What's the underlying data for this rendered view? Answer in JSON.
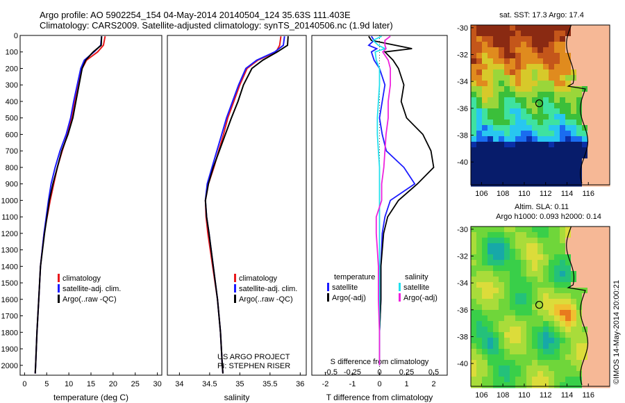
{
  "header": {
    "line1": "Argo profile: AO 5902254_154 04-May-2014 20140504_124 35.63S 111.403E",
    "line2": "Climatology: CARS2009. Satellite-adjusted climatology: synTS_20140506.nc (1.9d later)"
  },
  "colors": {
    "climatology": "#e8181c",
    "satellite": "#1a1aff",
    "argo": "#000000",
    "satellite_salinity": "#22e0ee",
    "argo_salinity": "#ee22dd",
    "land": "#f6b896"
  },
  "chart_data": [
    {
      "type": "line",
      "panel": "temperature",
      "xlabel": "temperature (deg C)",
      "ylabel": "",
      "xlim": [
        -1,
        31
      ],
      "ylim": [
        2060,
        0
      ],
      "x_ticks": [
        "0",
        "5",
        "10",
        "15",
        "20",
        "25",
        "30"
      ],
      "y_ticks": [
        "0",
        "100",
        "200",
        "300",
        "400",
        "500",
        "600",
        "700",
        "800",
        "900",
        "1000",
        "1100",
        "1200",
        "1300",
        "1400",
        "1500",
        "1600",
        "1700",
        "1800",
        "1900",
        "2000"
      ],
      "legend": {
        "position": "lower-center",
        "entries": [
          "climatology",
          "satellite-adj. clim.",
          "Argo(..raw -QC)"
        ]
      },
      "series": [
        {
          "name": "climatology",
          "depth": [
            5,
            60,
            100,
            150,
            200,
            300,
            400,
            500,
            600,
            700,
            800,
            900,
            1000,
            1200,
            1400,
            1600,
            1800,
            2000,
            2050
          ],
          "values": [
            18.2,
            17.8,
            16.5,
            14.0,
            13.0,
            12.0,
            11.3,
            10.6,
            9.7,
            8.5,
            7.4,
            6.6,
            5.8,
            4.4,
            3.6,
            3.2,
            2.8,
            2.5,
            2.4
          ]
        },
        {
          "name": "satellite-adj. clim.",
          "depth": [
            5,
            60,
            100,
            150,
            200,
            300,
            400,
            500,
            600,
            700,
            800,
            900,
            1000,
            1200,
            1400,
            1600,
            1800,
            2000,
            2050
          ],
          "values": [
            17.4,
            17.2,
            15.7,
            13.5,
            12.7,
            11.9,
            11.1,
            10.4,
            9.4,
            8.0,
            6.9,
            6.0,
            5.4,
            4.4,
            3.6,
            3.2,
            2.8,
            2.5,
            2.4
          ]
        },
        {
          "name": "Argo(..raw -QC)",
          "depth": [
            5,
            60,
            100,
            150,
            200,
            300,
            400,
            500,
            600,
            700,
            800,
            900,
            1000,
            1200,
            1400,
            1600,
            1800,
            2000,
            2050
          ],
          "values": [
            17.4,
            17.3,
            15.5,
            13.8,
            13.0,
            12.3,
            11.6,
            10.9,
            9.8,
            8.4,
            7.4,
            6.4,
            5.6,
            4.5,
            3.6,
            3.2,
            2.8,
            2.5,
            2.4
          ]
        }
      ]
    },
    {
      "type": "line",
      "panel": "salinity",
      "xlabel": "salinity",
      "ylabel": "",
      "xlim": [
        33.8,
        36.1
      ],
      "ylim": [
        2060,
        0
      ],
      "x_ticks": [
        "34",
        "34.5",
        "35",
        "35.5",
        "36"
      ],
      "legend": {
        "position": "lower-center",
        "entries": [
          "climatology",
          "satellite-adj. clim.",
          "Argo(..raw -QC)"
        ]
      },
      "annotation": [
        "US ARGO PROJECT",
        "PI: STEPHEN RISER"
      ],
      "series": [
        {
          "name": "climatology",
          "depth": [
            5,
            60,
            100,
            150,
            200,
            300,
            400,
            500,
            600,
            700,
            800,
            900,
            1000,
            1100,
            1200,
            1400,
            1600,
            1800,
            2000,
            2050
          ],
          "values": [
            35.68,
            35.66,
            35.6,
            35.3,
            35.12,
            35.0,
            34.9,
            34.8,
            34.73,
            34.65,
            34.57,
            34.48,
            34.43,
            34.44,
            34.47,
            34.55,
            34.63,
            34.68,
            34.71,
            34.72
          ]
        },
        {
          "name": "satellite-adj. clim.",
          "depth": [
            5,
            60,
            100,
            150,
            200,
            300,
            400,
            500,
            600,
            700,
            800,
            900,
            1000,
            1100,
            1200,
            1400,
            1600,
            1800,
            2000,
            2050
          ],
          "values": [
            35.74,
            35.72,
            35.58,
            35.28,
            35.1,
            34.98,
            34.88,
            34.78,
            34.7,
            34.62,
            34.54,
            34.46,
            34.43,
            34.45,
            34.49,
            34.56,
            34.63,
            34.68,
            34.71,
            34.72
          ]
        },
        {
          "name": "Argo(..raw -QC)",
          "depth": [
            5,
            60,
            100,
            150,
            200,
            300,
            400,
            500,
            600,
            700,
            800,
            900,
            1000,
            1100,
            1200,
            1400,
            1600,
            1800,
            2000,
            2050
          ],
          "values": [
            35.8,
            35.79,
            35.62,
            35.38,
            35.2,
            35.06,
            34.97,
            34.86,
            34.76,
            34.66,
            34.56,
            34.48,
            34.43,
            34.45,
            34.49,
            34.56,
            34.63,
            34.68,
            34.71,
            34.72
          ]
        }
      ]
    },
    {
      "type": "line",
      "panel": "difference",
      "xlabel": "T difference from climatology",
      "xlabel_top": "S difference from climatology",
      "xlim": [
        -2.5,
        2.5
      ],
      "ylim": [
        2060,
        0
      ],
      "x_ticks": [
        "-2",
        "-1",
        "0",
        "1",
        "2"
      ],
      "x_ticks_top": [
        "-0.5",
        "-0.25",
        "0",
        "0.25",
        "0.5"
      ],
      "legend": {
        "position": "lower-center",
        "headers": [
          "temperature",
          "salinity"
        ],
        "entries": [
          "satellite",
          "Argo(-adj)",
          "satellite",
          "Argo(-adj)"
        ]
      },
      "series": [
        {
          "name": "satellite",
          "group": "temperature",
          "depth": [
            5,
            30,
            60,
            80,
            100,
            150,
            200,
            300,
            400,
            500,
            600,
            700,
            800,
            900,
            1000,
            1100,
            1200,
            1400,
            1600,
            1800,
            2000
          ],
          "values": [
            -0.3,
            -0.2,
            -0.4,
            -0.1,
            -0.3,
            -0.2,
            0.0,
            0.2,
            0.1,
            0.0,
            0.1,
            0.25,
            0.9,
            1.3,
            0.4,
            0.2,
            0.1,
            0.05,
            0.05,
            0.0,
            0.0
          ]
        },
        {
          "name": "Argo(-adj)",
          "group": "temperature",
          "depth": [
            5,
            30,
            60,
            80,
            100,
            150,
            200,
            300,
            400,
            500,
            600,
            700,
            800,
            900,
            1000,
            1100,
            1200,
            1400,
            1600,
            1800,
            2000
          ],
          "values": [
            -0.4,
            -0.3,
            0.6,
            1.2,
            0.2,
            0.5,
            0.7,
            0.9,
            0.8,
            1.0,
            1.6,
            1.9,
            2.0,
            1.4,
            0.7,
            0.3,
            0.15,
            0.05,
            0.05,
            0.0,
            0.0
          ]
        },
        {
          "name": "satellite",
          "group": "salinity",
          "depth": [
            5,
            30,
            60,
            80,
            100,
            150,
            200,
            300,
            400,
            500,
            600,
            700,
            800,
            900,
            1000,
            1200,
            1400,
            1600,
            1800,
            2000
          ],
          "values": [
            0.02,
            -0.06,
            -0.01,
            0.05,
            -0.04,
            -0.03,
            0.0,
            0.0,
            -0.01,
            -0.02,
            -0.02,
            -0.01,
            0.0,
            0.0,
            0.0,
            0.0,
            0.0,
            0.0,
            0.0,
            0.0
          ]
        },
        {
          "name": "Argo(-adj)",
          "group": "salinity",
          "depth": [
            5,
            30,
            60,
            80,
            100,
            150,
            200,
            300,
            400,
            500,
            600,
            700,
            800,
            900,
            1000,
            1100,
            1200,
            1300,
            1400,
            1600,
            1800,
            2000
          ],
          "values": [
            0.1,
            0.05,
            0.05,
            0.06,
            0.03,
            0.08,
            0.1,
            0.1,
            0.08,
            0.08,
            0.06,
            0.05,
            0.04,
            0.02,
            0.02,
            -0.03,
            -0.03,
            -0.02,
            -0.01,
            -0.01,
            0.0,
            0.0
          ]
        }
      ]
    },
    {
      "type": "heatmap",
      "panel": "sst-map",
      "title": "sat. SST: 17.3 Argo: 17.4",
      "x_ticks": [
        "106",
        "108",
        "110",
        "112",
        "114",
        "116"
      ],
      "y_ticks": [
        "-30",
        "-32",
        "-34",
        "-36",
        "-38",
        "-40"
      ],
      "xlim": [
        105,
        118
      ],
      "ylim": [
        -41.7,
        -29.8
      ],
      "float_position": {
        "lon": 111.403,
        "lat": -35.63
      }
    },
    {
      "type": "heatmap",
      "panel": "sla-map",
      "title_lines": [
        "Altim. SLA: 0.11",
        "Argo h1000: 0.093 h2000: 0.14"
      ],
      "x_ticks": [
        "106",
        "108",
        "110",
        "112",
        "114",
        "116"
      ],
      "y_ticks": [
        "-30",
        "-32",
        "-34",
        "-36",
        "-38",
        "-40"
      ],
      "xlim": [
        105,
        118
      ],
      "ylim": [
        -41.7,
        -29.8
      ],
      "float_position": {
        "lon": 111.403,
        "lat": -35.63
      }
    }
  ],
  "footer": {
    "stamp": "©IMOS 14-May-2014 20:00:21"
  }
}
